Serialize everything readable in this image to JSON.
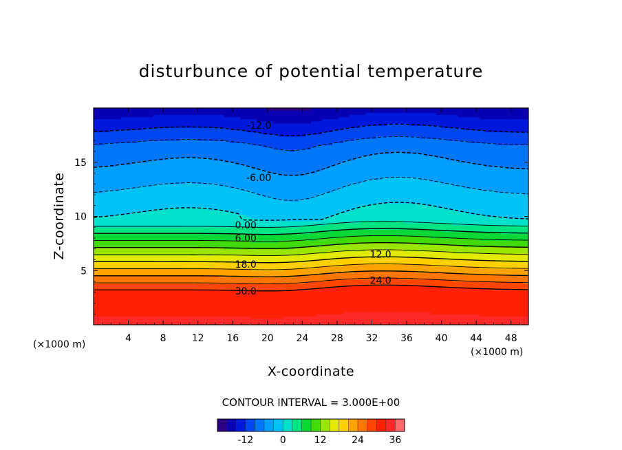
{
  "chart_data": {
    "type": "heatmap",
    "title": "disturbunce of potential temperature",
    "xlabel": "X-coordinate",
    "ylabel": "Z-coordinate",
    "x_unit": "(×1000 m)",
    "z_unit": "(×1000 m)",
    "xlim": [
      0,
      50
    ],
    "ylim": [
      0,
      20
    ],
    "x_ticks": [
      "4",
      "8",
      "12",
      "16",
      "20",
      "24",
      "28",
      "32",
      "36",
      "40",
      "44",
      "48"
    ],
    "y_ticks": [
      "5",
      "10",
      "15"
    ],
    "contour_interval_text": "CONTOUR INTERVAL = 3.000E+00",
    "colorbar": {
      "min": -21,
      "max": 39,
      "step": 3,
      "tick_labels": [
        "-12",
        "0",
        "12",
        "24",
        "36"
      ]
    },
    "contour_labels": [
      {
        "text": "-12.0",
        "x": 19,
        "z": 18.4
      },
      {
        "text": "-6.00",
        "x": 19,
        "z": 13.6
      },
      {
        "text": "0.00",
        "x": 17.5,
        "z": 9.2
      },
      {
        "text": "6.00",
        "x": 17.5,
        "z": 8.0
      },
      {
        "text": "12.0",
        "x": 33,
        "z": 6.5
      },
      {
        "text": "18.0",
        "x": 17.5,
        "z": 5.6
      },
      {
        "text": "24.0",
        "x": 33,
        "z": 4.1
      },
      {
        "text": "30.0",
        "x": 17.5,
        "z": 3.1
      }
    ],
    "colors": {
      "negative_contour": "#000000",
      "positive_contour": "#000000",
      "top": "#0000c8",
      "bottom": "#ff1a00"
    }
  }
}
